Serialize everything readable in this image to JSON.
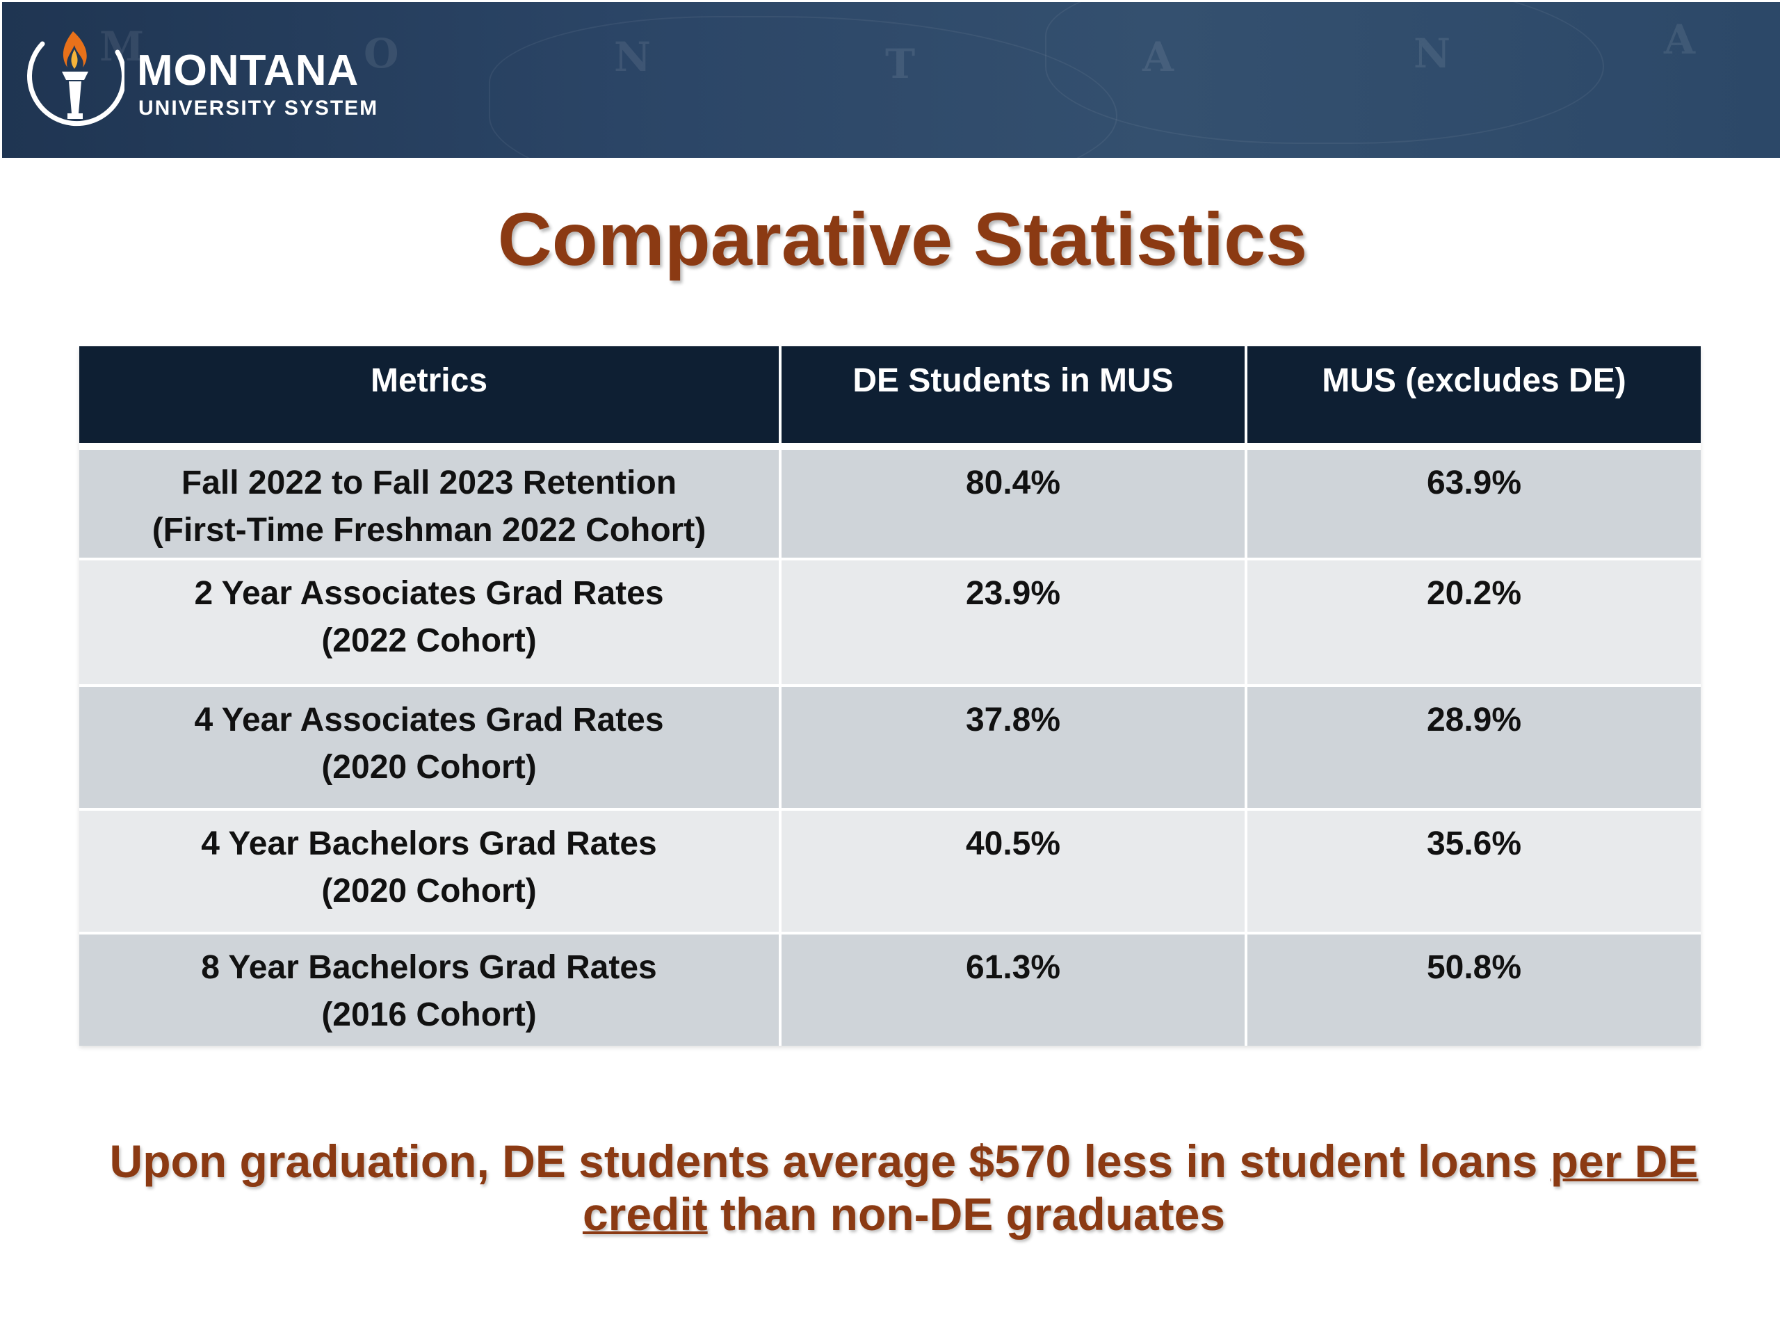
{
  "header": {
    "logo_title": "MONTANA",
    "logo_subtitle": "UNIVERSITY SYSTEM",
    "brand_color": "#1f3552",
    "flame_color": "#e8711a"
  },
  "title": "Comparative Statistics",
  "table": {
    "headers": [
      "Metrics",
      "DE Students in MUS",
      "MUS (excludes DE)"
    ],
    "rows": [
      {
        "metric_line1": "Fall 2022 to Fall 2023 Retention",
        "metric_line2": "(First-Time Freshman 2022 Cohort)",
        "de": "80.4%",
        "mus": "63.9%"
      },
      {
        "metric_line1": "2 Year Associates Grad Rates",
        "metric_line2": "(2022 Cohort)",
        "de": "23.9%",
        "mus": "20.2%"
      },
      {
        "metric_line1": "4 Year Associates Grad Rates",
        "metric_line2": "(2020 Cohort)",
        "de": "37.8%",
        "mus": "28.9%"
      },
      {
        "metric_line1": "4 Year Bachelors Grad Rates",
        "metric_line2": "(2020 Cohort)",
        "de": "40.5%",
        "mus": "35.6%"
      },
      {
        "metric_line1": "8 Year Bachelors Grad Rates",
        "metric_line2": "(2016 Cohort)",
        "de": "61.3%",
        "mus": "50.8%"
      }
    ]
  },
  "footnote": {
    "part1": "Upon graduation, DE students average $570 less in student loans ",
    "underlined": "per DE credit",
    "part2": " than non-DE graduates"
  },
  "colors": {
    "title": "#8b3a13",
    "header_bg": "#0e1f33",
    "row_dark": "#cfd4d9",
    "row_light": "#e8eaec"
  }
}
